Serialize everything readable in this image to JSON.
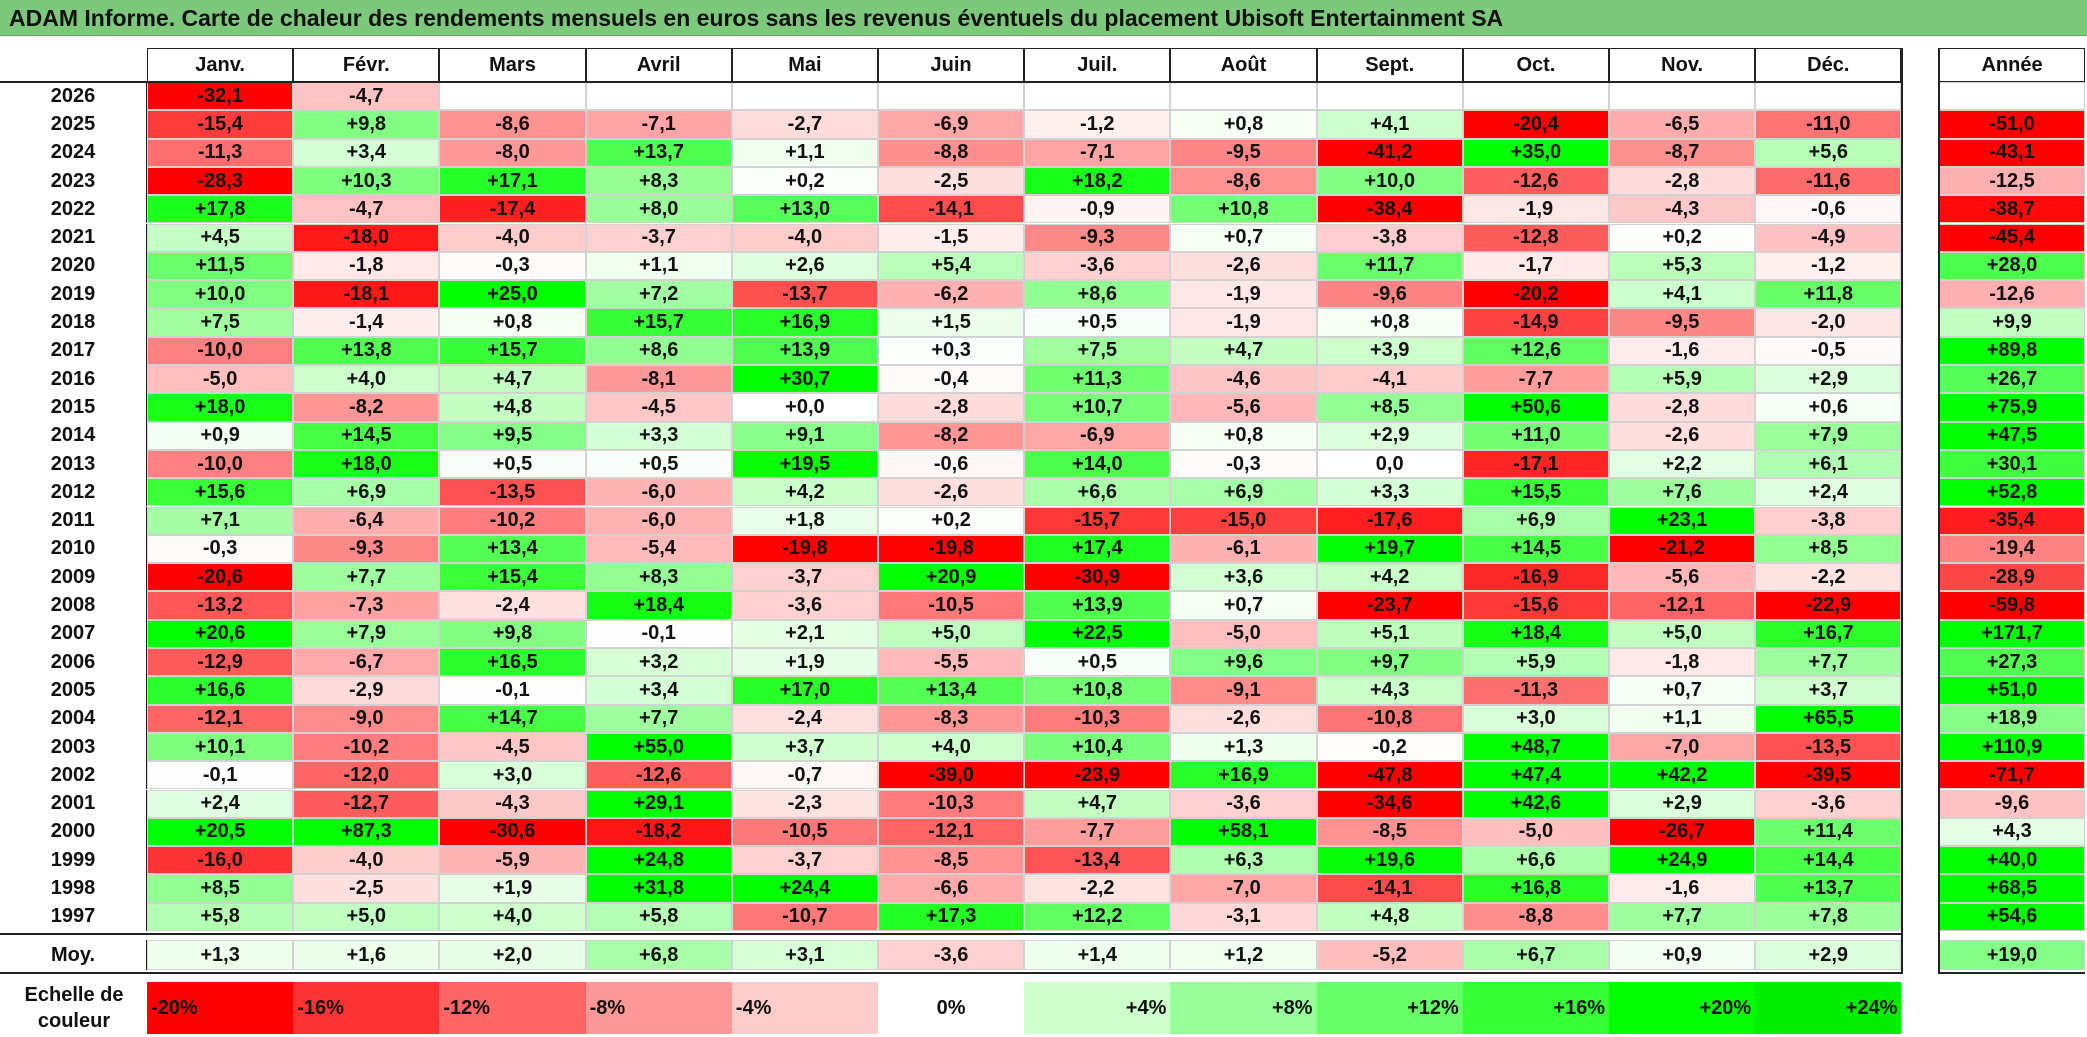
{
  "title": "ADAM Informe. Carte de chaleur des rendements mensuels en euros sans les revenus éventuels du placement Ubisoft Entertainment SA",
  "chart_data": {
    "type": "heatmap",
    "title": "ADAM Informe. Carte de chaleur des rendements mensuels en euros sans les revenus éventuels du placement Ubisoft Entertainment SA",
    "months": [
      "Janv.",
      "Févr.",
      "Mars",
      "Avril",
      "Mai",
      "Juin",
      "Juil.",
      "Août",
      "Sept.",
      "Oct.",
      "Nov.",
      "Déc."
    ],
    "annual_header": "Année",
    "rows": [
      {
        "year": "2026",
        "values": [
          "-32,1",
          "-4,7",
          "",
          "",
          "",
          "",
          "",
          "",
          "",
          "",
          "",
          ""
        ],
        "annual": ""
      },
      {
        "year": "2025",
        "values": [
          "-15,4",
          "+9,8",
          "-8,6",
          "-7,1",
          "-2,7",
          "-6,9",
          "-1,2",
          "+0,8",
          "+4,1",
          "-20,4",
          "-6,5",
          "-11,0"
        ],
        "annual": "-51,0"
      },
      {
        "year": "2024",
        "values": [
          "-11,3",
          "+3,4",
          "-8,0",
          "+13,7",
          "+1,1",
          "-8,8",
          "-7,1",
          "-9,5",
          "-41,2",
          "+35,0",
          "-8,7",
          "+5,6"
        ],
        "annual": "-43,1"
      },
      {
        "year": "2023",
        "values": [
          "-28,3",
          "+10,3",
          "+17,1",
          "+8,3",
          "+0,2",
          "-2,5",
          "+18,2",
          "-8,6",
          "+10,0",
          "-12,6",
          "-2,8",
          "-11,6"
        ],
        "annual": "-12,5"
      },
      {
        "year": "2022",
        "values": [
          "+17,8",
          "-4,7",
          "-17,4",
          "+8,0",
          "+13,0",
          "-14,1",
          "-0,9",
          "+10,8",
          "-38,4",
          "-1,9",
          "-4,3",
          "-0,6"
        ],
        "annual": "-38,7"
      },
      {
        "year": "2021",
        "values": [
          "+4,5",
          "-18,0",
          "-4,0",
          "-3,7",
          "-4,0",
          "-1,5",
          "-9,3",
          "+0,7",
          "-3,8",
          "-12,8",
          "+0,2",
          "-4,9"
        ],
        "annual": "-45,4"
      },
      {
        "year": "2020",
        "values": [
          "+11,5",
          "-1,8",
          "-0,3",
          "+1,1",
          "+2,6",
          "+5,4",
          "-3,6",
          "-2,6",
          "+11,7",
          "-1,7",
          "+5,3",
          "-1,2"
        ],
        "annual": "+28,0"
      },
      {
        "year": "2019",
        "values": [
          "+10,0",
          "-18,1",
          "+25,0",
          "+7,2",
          "-13,7",
          "-6,2",
          "+8,6",
          "-1,9",
          "-9,6",
          "-20,2",
          "+4,1",
          "+11,8"
        ],
        "annual": "-12,6"
      },
      {
        "year": "2018",
        "values": [
          "+7,5",
          "-1,4",
          "+0,8",
          "+15,7",
          "+16,9",
          "+1,5",
          "+0,5",
          "-1,9",
          "+0,8",
          "-14,9",
          "-9,5",
          "-2,0"
        ],
        "annual": "+9,9"
      },
      {
        "year": "2017",
        "values": [
          "-10,0",
          "+13,8",
          "+15,7",
          "+8,6",
          "+13,9",
          "+0,3",
          "+7,5",
          "+4,7",
          "+3,9",
          "+12,6",
          "-1,6",
          "-0,5"
        ],
        "annual": "+89,8"
      },
      {
        "year": "2016",
        "values": [
          "-5,0",
          "+4,0",
          "+4,7",
          "-8,1",
          "+30,7",
          "-0,4",
          "+11,3",
          "-4,6",
          "-4,1",
          "-7,7",
          "+5,9",
          "+2,9"
        ],
        "annual": "+26,7"
      },
      {
        "year": "2015",
        "values": [
          "+18,0",
          "-8,2",
          "+4,8",
          "-4,5",
          "+0,0",
          "-2,8",
          "+10,7",
          "-5,6",
          "+8,5",
          "+50,6",
          "-2,8",
          "+0,6"
        ],
        "annual": "+75,9"
      },
      {
        "year": "2014",
        "values": [
          "+0,9",
          "+14,5",
          "+9,5",
          "+3,3",
          "+9,1",
          "-8,2",
          "-6,9",
          "+0,8",
          "+2,9",
          "+11,0",
          "-2,6",
          "+7,9"
        ],
        "annual": "+47,5"
      },
      {
        "year": "2013",
        "values": [
          "-10,0",
          "+18,0",
          "+0,5",
          "+0,5",
          "+19,5",
          "-0,6",
          "+14,0",
          "-0,3",
          "0,0",
          "-17,1",
          "+2,2",
          "+6,1"
        ],
        "annual": "+30,1"
      },
      {
        "year": "2012",
        "values": [
          "+15,6",
          "+6,9",
          "-13,5",
          "-6,0",
          "+4,2",
          "-2,6",
          "+6,6",
          "+6,9",
          "+3,3",
          "+15,5",
          "+7,6",
          "+2,4"
        ],
        "annual": "+52,8"
      },
      {
        "year": "2011",
        "values": [
          "+7,1",
          "-6,4",
          "-10,2",
          "-6,0",
          "+1,8",
          "+0,2",
          "-15,7",
          "-15,0",
          "-17,6",
          "+6,9",
          "+23,1",
          "-3,8"
        ],
        "annual": "-35,4"
      },
      {
        "year": "2010",
        "values": [
          "-0,3",
          "-9,3",
          "+13,4",
          "-5,4",
          "-19,8",
          "-19,8",
          "+17,4",
          "-6,1",
          "+19,7",
          "+14,5",
          "-21,2",
          "+8,5"
        ],
        "annual": "-19,4"
      },
      {
        "year": "2009",
        "values": [
          "-20,6",
          "+7,7",
          "+15,4",
          "+8,3",
          "-3,7",
          "+20,9",
          "-30,9",
          "+3,6",
          "+4,2",
          "-16,9",
          "-5,6",
          "-2,2"
        ],
        "annual": "-28,9"
      },
      {
        "year": "2008",
        "values": [
          "-13,2",
          "-7,3",
          "-2,4",
          "+18,4",
          "-3,6",
          "-10,5",
          "+13,9",
          "+0,7",
          "-23,7",
          "-15,6",
          "-12,1",
          "-22,9"
        ],
        "annual": "-59,8"
      },
      {
        "year": "2007",
        "values": [
          "+20,6",
          "+7,9",
          "+9,8",
          "-0,1",
          "+2,1",
          "+5,0",
          "+22,5",
          "-5,0",
          "+5,1",
          "+18,4",
          "+5,0",
          "+16,7"
        ],
        "annual": "+171,7"
      },
      {
        "year": "2006",
        "values": [
          "-12,9",
          "-6,7",
          "+16,5",
          "+3,2",
          "+1,9",
          "-5,5",
          "+0,5",
          "+9,6",
          "+9,7",
          "+5,9",
          "-1,8",
          "+7,7"
        ],
        "annual": "+27,3"
      },
      {
        "year": "2005",
        "values": [
          "+16,6",
          "-2,9",
          "-0,1",
          "+3,4",
          "+17,0",
          "+13,4",
          "+10,8",
          "-9,1",
          "+4,3",
          "-11,3",
          "+0,7",
          "+3,7"
        ],
        "annual": "+51,0"
      },
      {
        "year": "2004",
        "values": [
          "-12,1",
          "-9,0",
          "+14,7",
          "+7,7",
          "-2,4",
          "-8,3",
          "-10,3",
          "-2,6",
          "-10,8",
          "+3,0",
          "+1,1",
          "+65,5"
        ],
        "annual": "+18,9"
      },
      {
        "year": "2003",
        "values": [
          "+10,1",
          "-10,2",
          "-4,5",
          "+55,0",
          "+3,7",
          "+4,0",
          "+10,4",
          "+1,3",
          "-0,2",
          "+48,7",
          "-7,0",
          "-13,5"
        ],
        "annual": "+110,9"
      },
      {
        "year": "2002",
        "values": [
          "-0,1",
          "-12,0",
          "+3,0",
          "-12,6",
          "-0,7",
          "-39,0",
          "-23,9",
          "+16,9",
          "-47,8",
          "+47,4",
          "+42,2",
          "-39,5"
        ],
        "annual": "-71,7"
      },
      {
        "year": "2001",
        "values": [
          "+2,4",
          "-12,7",
          "-4,3",
          "+29,1",
          "-2,3",
          "-10,3",
          "+4,7",
          "-3,6",
          "-34,6",
          "+42,6",
          "+2,9",
          "-3,6"
        ],
        "annual": "-9,6"
      },
      {
        "year": "2000",
        "values": [
          "+20,5",
          "+87,3",
          "-30,6",
          "-18,2",
          "-10,5",
          "-12,1",
          "-7,7",
          "+58,1",
          "-8,5",
          "-5,0",
          "-26,7",
          "+11,4"
        ],
        "annual": "+4,3"
      },
      {
        "year": "1999",
        "values": [
          "-16,0",
          "-4,0",
          "-5,9",
          "+24,8",
          "-3,7",
          "-8,5",
          "-13,4",
          "+6,3",
          "+19,6",
          "+6,6",
          "+24,9",
          "+14,4"
        ],
        "annual": "+40,0"
      },
      {
        "year": "1998",
        "values": [
          "+8,5",
          "-2,5",
          "+1,9",
          "+31,8",
          "+24,4",
          "-6,6",
          "-2,2",
          "-7,0",
          "-14,1",
          "+16,8",
          "-1,6",
          "+13,7"
        ],
        "annual": "+68,5"
      },
      {
        "year": "1997",
        "values": [
          "+5,8",
          "+5,0",
          "+4,0",
          "+5,8",
          "-10,7",
          "+17,3",
          "+12,2",
          "-3,1",
          "+4,8",
          "-8,8",
          "+7,7",
          "+7,8"
        ],
        "annual": "+54,6"
      }
    ],
    "average": {
      "label": "Moy.",
      "values": [
        "+1,3",
        "+1,6",
        "+2,0",
        "+6,8",
        "+3,1",
        "-3,6",
        "+1,4",
        "+1,2",
        "-5,2",
        "+6,7",
        "+0,9",
        "+2,9"
      ],
      "annual": "+19,0"
    },
    "color_scale": {
      "label": "Echelle de couleur",
      "stops": [
        {
          "label": "-20%",
          "color": "#ff0000"
        },
        {
          "label": "-16%",
          "color": "#ff3333"
        },
        {
          "label": "-12%",
          "color": "#ff6666"
        },
        {
          "label": "-8%",
          "color": "#ff9999"
        },
        {
          "label": "-4%",
          "color": "#ffcccc"
        },
        {
          "label": "0%",
          "color": "#ffffff"
        },
        {
          "label": "+4%",
          "color": "#ccffcc"
        },
        {
          "label": "+8%",
          "color": "#99ff99"
        },
        {
          "label": "+12%",
          "color": "#66ff66"
        },
        {
          "label": "+16%",
          "color": "#33ff33"
        },
        {
          "label": "+20%",
          "color": "#00ff00"
        },
        {
          "label": "+24%",
          "color": "#00ee00"
        }
      ]
    }
  }
}
